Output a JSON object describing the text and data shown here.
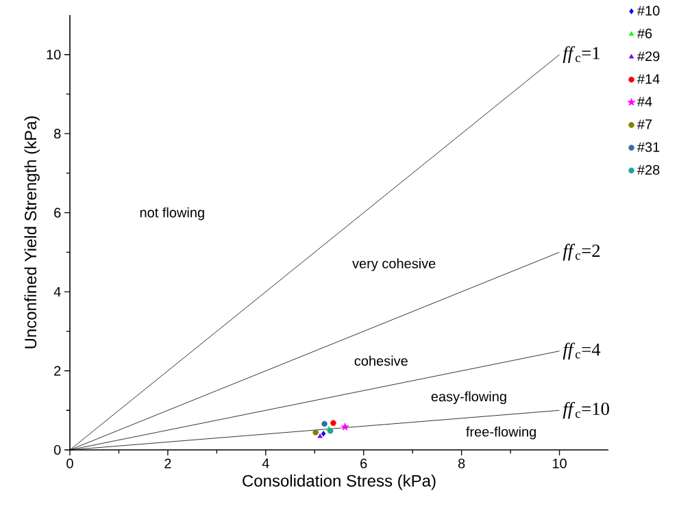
{
  "chart_data": {
    "type": "scatter",
    "xlabel": "Consolidation Stress (kPa)",
    "ylabel": "Unconfined Yield Strength (kPa)",
    "xlim": [
      0,
      11
    ],
    "ylim": [
      0,
      11
    ],
    "xticks": [
      0,
      2,
      4,
      6,
      8,
      10
    ],
    "yticks": [
      0,
      2,
      4,
      6,
      8,
      10
    ],
    "legend": "top right",
    "series": [
      {
        "name": "*ff*$_{c}$=1",
        "type": "line",
        "color": "#000000",
        "x": [
          0,
          10
        ],
        "values": [
          0,
          10
        ]
      },
      {
        "name": "*ff*$_{c}$=2",
        "type": "line",
        "color": "#000000",
        "x": [
          0,
          10
        ],
        "values": [
          0,
          5
        ]
      },
      {
        "name": "*ff*$_{c}$=4",
        "type": "line",
        "color": "#000000",
        "x": [
          0,
          10
        ],
        "values": [
          0,
          2.5
        ]
      },
      {
        "name": "*ff*$_{c}$=10",
        "type": "line",
        "color": "#000000",
        "x": [
          0,
          10
        ],
        "values": [
          0,
          1
        ]
      },
      {
        "name": "#10",
        "marker": "diamond",
        "color": "#0000ff",
        "x": [
          5.18
        ],
        "values": [
          0.41
        ]
      },
      {
        "name": "#6",
        "marker": "triangle",
        "color": "#00ff00",
        "x": [
          5.29
        ],
        "values": [
          0.53
        ]
      },
      {
        "name": "#29",
        "marker": "triangle",
        "color": "#8000ff",
        "x": [
          5.11
        ],
        "values": [
          0.34
        ]
      },
      {
        "name": "#14",
        "marker": "circle",
        "color": "#ff0000",
        "x": [
          5.38
        ],
        "values": [
          0.68
        ]
      },
      {
        "name": "#4",
        "marker": "star",
        "color": "#ff00ff",
        "x": [
          5.62
        ],
        "values": [
          0.58
        ]
      },
      {
        "name": "#7",
        "marker": "circle",
        "color": "#808000",
        "x": [
          5.02
        ],
        "values": [
          0.44
        ]
      },
      {
        "name": "#31",
        "marker": "circle",
        "color": "#3a6aa8",
        "x": [
          5.2
        ],
        "values": [
          0.66
        ]
      },
      {
        "name": "#28",
        "marker": "circle",
        "color": "#20a0a0",
        "x": [
          5.32
        ],
        "values": [
          0.48
        ]
      }
    ],
    "annotations": [
      "not flowing",
      "very cohesive",
      "cohesive",
      "easy-flowing",
      "free-flowing"
    ]
  }
}
